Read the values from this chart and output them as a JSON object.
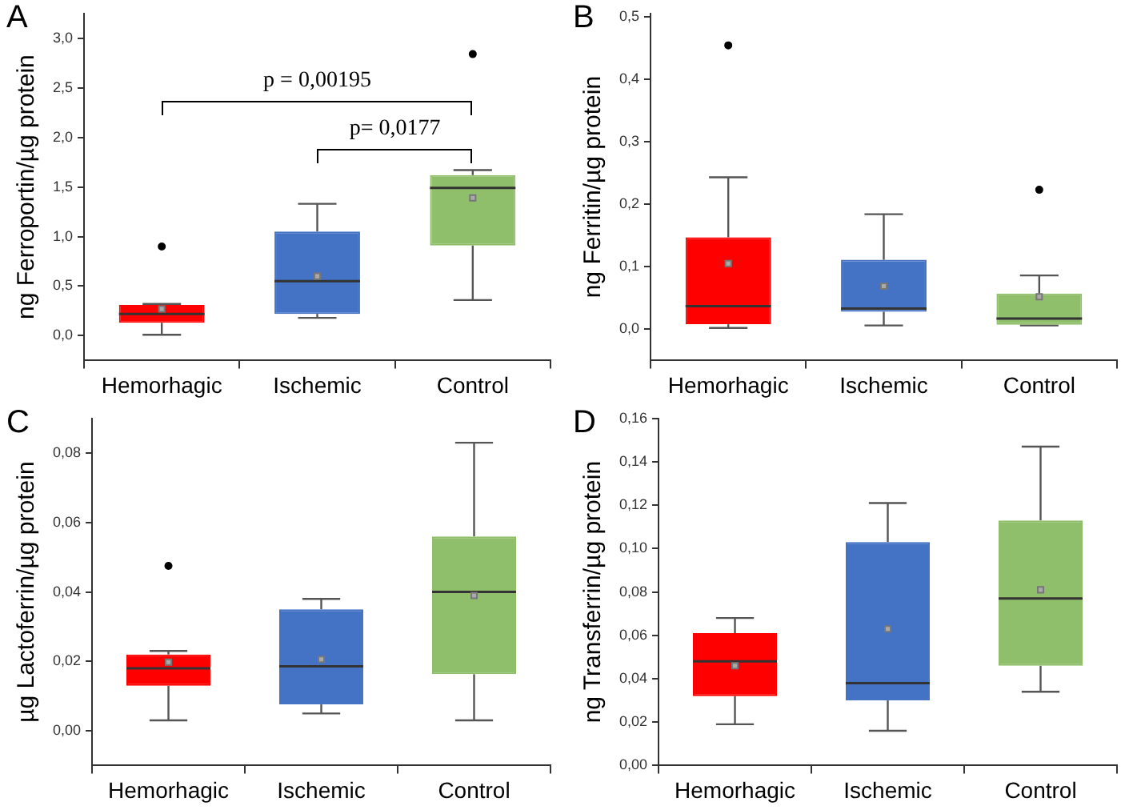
{
  "chart_data": [
    {
      "type": "box",
      "title": "A",
      "ylabel": "ng Ferroportin/µg protein",
      "categories": [
        "Hemorhagic",
        "Ischemic",
        "Control"
      ],
      "colors": [
        "#ff0000",
        "#4472c4",
        "#8fbf6a"
      ],
      "boxes": [
        {
          "low": 0.01,
          "q1": 0.13,
          "median": 0.22,
          "q3": 0.31,
          "high": 0.32,
          "mean": 0.27,
          "outliers": [
            0.9
          ]
        },
        {
          "low": 0.18,
          "q1": 0.22,
          "median": 0.55,
          "q3": 1.05,
          "high": 1.33,
          "mean": 0.6
        },
        {
          "low": 0.36,
          "q1": 0.91,
          "median": 1.49,
          "q3": 1.62,
          "high": 1.67,
          "mean": 1.39,
          "outliers": [
            2.84
          ]
        }
      ],
      "ylim": [
        -0.25,
        3.25
      ],
      "yticks": [
        {
          "value": 0,
          "label": "0,0"
        },
        {
          "value": 0.5,
          "label": "0,5"
        },
        {
          "value": 1,
          "label": "1,0"
        },
        {
          "value": 1.5,
          "label": "1,5"
        },
        {
          "value": 2,
          "label": "2,0"
        },
        {
          "value": 2.5,
          "label": "2,5"
        },
        {
          "value": 3,
          "label": "3,0"
        }
      ],
      "annotations": [
        "p = 0,00195",
        "p= 0,0177"
      ],
      "grid": false,
      "legend": false,
      "marker": "circle"
    },
    {
      "type": "box",
      "title": "B",
      "ylabel": "ng Ferritin/µg protein",
      "categories": [
        "Hemorhagic",
        "Ischemic",
        "Control"
      ],
      "colors": [
        "#ff0000",
        "#4472c4",
        "#8fbf6a"
      ],
      "boxes": [
        {
          "low": 0.002,
          "q1": 0.008,
          "median": 0.037,
          "q3": 0.147,
          "high": 0.243,
          "mean": 0.105,
          "outliers": [
            0.454
          ]
        },
        {
          "low": 0.006,
          "q1": 0.028,
          "median": 0.033,
          "q3": 0.111,
          "high": 0.184,
          "mean": 0.069
        },
        {
          "low": 0.006,
          "q1": 0.007,
          "median": 0.017,
          "q3": 0.057,
          "high": 0.086,
          "mean": 0.052,
          "outliers": [
            0.223
          ]
        }
      ],
      "ylim": [
        -0.05,
        0.505
      ],
      "yticks": [
        {
          "value": 0,
          "label": "0,0"
        },
        {
          "value": 0.1,
          "label": "0,1"
        },
        {
          "value": 0.2,
          "label": "0,2"
        },
        {
          "value": 0.3,
          "label": "0,3"
        },
        {
          "value": 0.4,
          "label": "0,4"
        },
        {
          "value": 0.5,
          "label": "0,5"
        }
      ],
      "grid": false,
      "legend": false,
      "marker": "circle"
    },
    {
      "type": "box",
      "title": "C",
      "ylabel": "µg Lactoferrin/µg protein",
      "categories": [
        "Hemorhagic",
        "Ischemic",
        "Control"
      ],
      "colors": [
        "#ff0000",
        "#4472c4",
        "#8fbf6a"
      ],
      "boxes": [
        {
          "low": 0.003,
          "q1": 0.013,
          "median": 0.018,
          "q3": 0.022,
          "high": 0.023,
          "mean": 0.0198,
          "outliers": [
            0.0475
          ]
        },
        {
          "low": 0.005,
          "q1": 0.0076,
          "median": 0.0186,
          "q3": 0.035,
          "high": 0.038,
          "mean": 0.0206
        },
        {
          "low": 0.003,
          "q1": 0.0163,
          "median": 0.04,
          "q3": 0.056,
          "high": 0.083,
          "mean": 0.039
        }
      ],
      "ylim": [
        -0.01,
        0.09
      ],
      "yticks": [
        {
          "value": 0,
          "label": "0,00"
        },
        {
          "value": 0.02,
          "label": "0,02"
        },
        {
          "value": 0.04,
          "label": "0,04"
        },
        {
          "value": 0.06,
          "label": "0,06"
        },
        {
          "value": 0.08,
          "label": "0,08"
        }
      ],
      "grid": false,
      "legend": false,
      "marker": "circle"
    },
    {
      "type": "box",
      "title": "D",
      "ylabel": "ng Transferrin/µg protein",
      "categories": [
        "Hemorhagic",
        "Ischemic",
        "Control"
      ],
      "colors": [
        "#ff0000",
        "#4472c4",
        "#8fbf6a"
      ],
      "boxes": [
        {
          "low": 0.019,
          "q1": 0.032,
          "median": 0.048,
          "q3": 0.061,
          "high": 0.068,
          "mean": 0.046
        },
        {
          "low": 0.016,
          "q1": 0.03,
          "median": 0.038,
          "q3": 0.103,
          "high": 0.121,
          "mean": 0.063
        },
        {
          "low": 0.034,
          "q1": 0.046,
          "median": 0.077,
          "q3": 0.113,
          "high": 0.147,
          "mean": 0.081
        }
      ],
      "ylim": [
        0,
        0.16
      ],
      "yticks": [
        {
          "value": 0,
          "label": "0,00"
        },
        {
          "value": 0.02,
          "label": "0,02"
        },
        {
          "value": 0.04,
          "label": "0,04"
        },
        {
          "value": 0.06,
          "label": "0,06"
        },
        {
          "value": 0.08,
          "label": "0,08"
        },
        {
          "value": 0.1,
          "label": "0,10"
        },
        {
          "value": 0.12,
          "label": "0,12"
        },
        {
          "value": 0.14,
          "label": "0,14"
        },
        {
          "value": 0.16,
          "label": "0,16"
        }
      ],
      "grid": false,
      "legend": false,
      "marker": "circle"
    }
  ]
}
